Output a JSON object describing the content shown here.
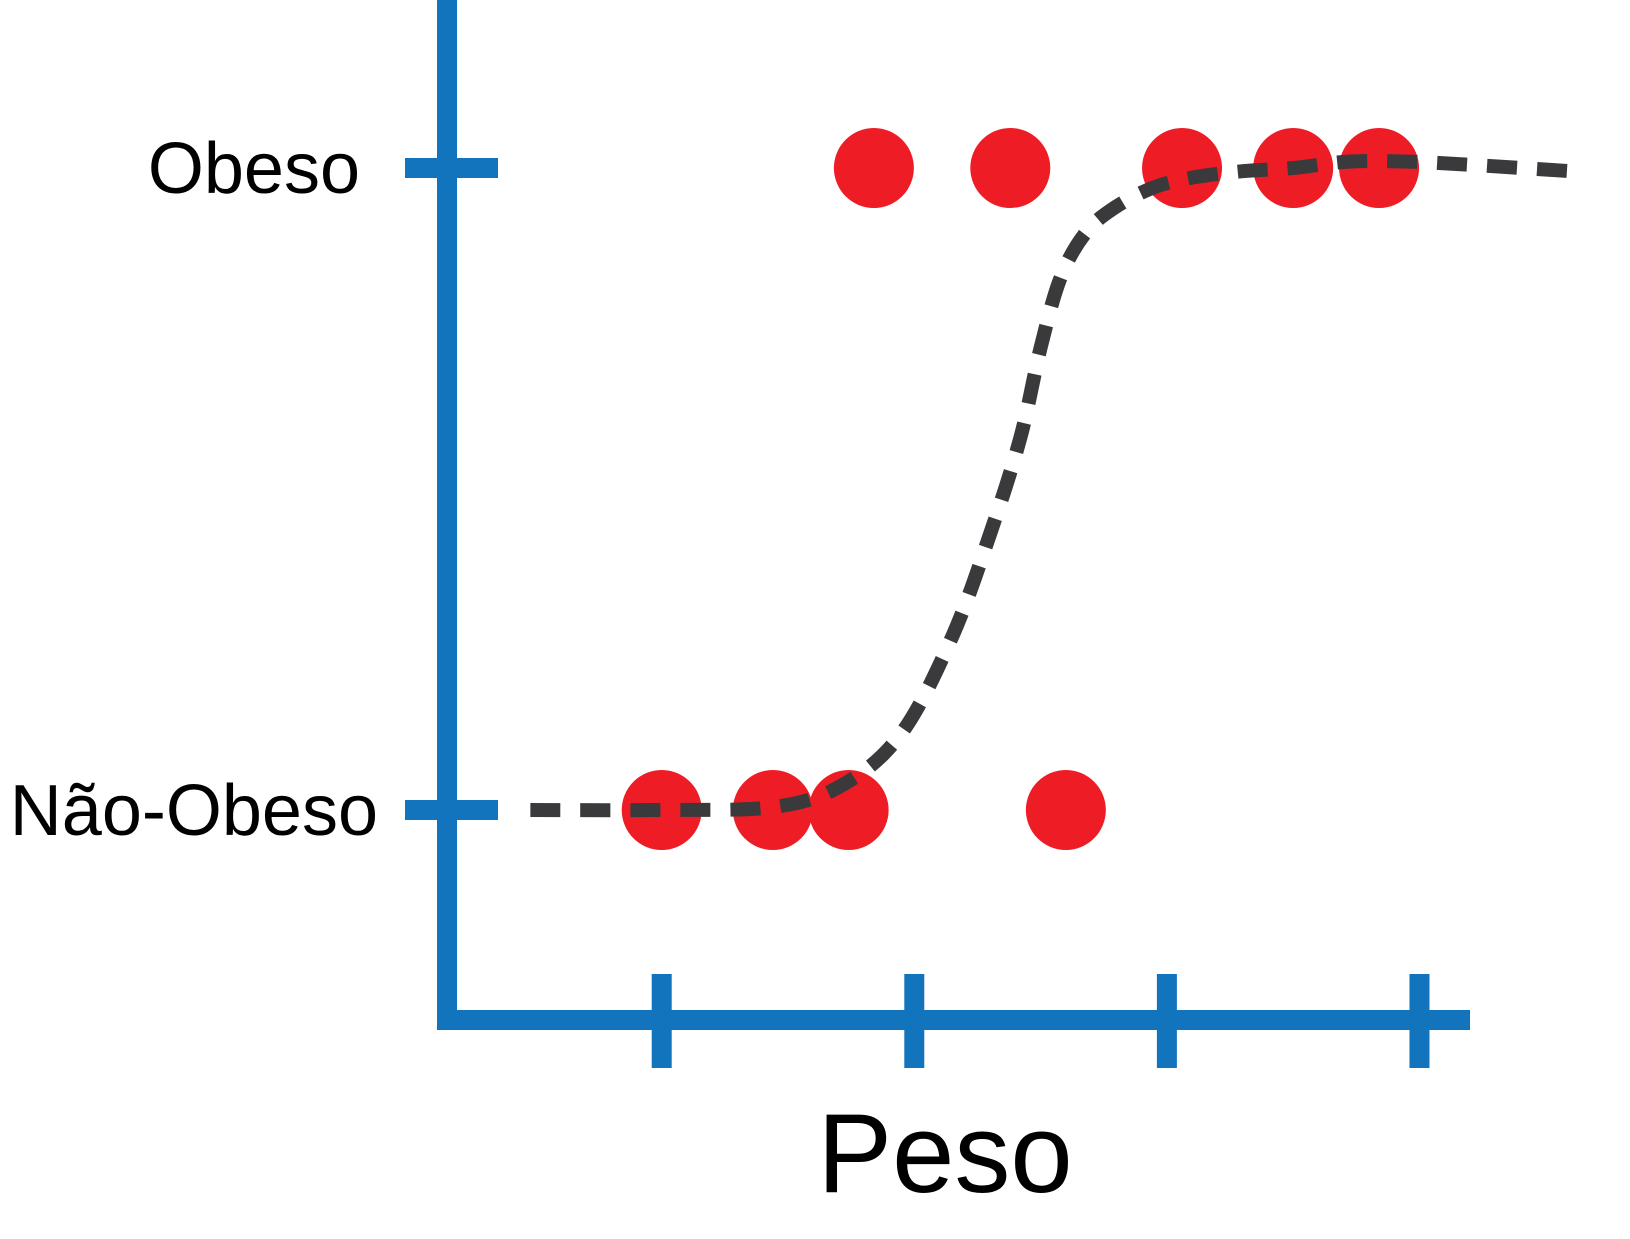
{
  "chart_data": {
    "type": "scatter",
    "title": "",
    "xlabel": "Peso",
    "ylabel": "",
    "x_ticks": [
      1,
      2,
      3,
      4
    ],
    "x_tick_labels": [
      "",
      "",
      "",
      ""
    ],
    "xlim": [
      0.15,
      4.2
    ],
    "y_categories": [
      "Não-Obeso",
      "Obeso"
    ],
    "ylim": [
      -0.3,
      1.26
    ],
    "grid": false,
    "legend": "none",
    "series": [
      {
        "type": "scatter",
        "color": "#ee1c25",
        "points": [
          {
            "x": 1.0,
            "y": 0
          },
          {
            "x": 1.44,
            "y": 0
          },
          {
            "x": 1.74,
            "y": 0
          },
          {
            "x": 2.6,
            "y": 0
          },
          {
            "x": 1.84,
            "y": 1
          },
          {
            "x": 2.38,
            "y": 1
          },
          {
            "x": 3.06,
            "y": 1
          },
          {
            "x": 3.5,
            "y": 1
          },
          {
            "x": 3.84,
            "y": 1
          }
        ]
      },
      {
        "type": "line",
        "style": "dashed",
        "color": "#3a3a3c",
        "x": [
          0.48,
          1.0,
          1.45,
          1.72,
          1.95,
          2.15,
          2.3,
          2.42,
          2.5,
          2.58,
          2.68,
          2.8,
          2.95,
          3.1,
          3.3,
          3.5,
          3.72,
          3.95,
          4.2,
          4.6
        ],
        "y": [
          0,
          0,
          0.005,
          0.04,
          0.12,
          0.27,
          0.43,
          0.58,
          0.72,
          0.83,
          0.9,
          0.94,
          0.97,
          0.985,
          0.995,
          1.0,
          1.01,
          1.01,
          1.005,
          0.995
        ]
      }
    ]
  },
  "colors": {
    "axis": "#1274bd",
    "points": "#ee1c25",
    "curve": "#3a3a3c"
  }
}
